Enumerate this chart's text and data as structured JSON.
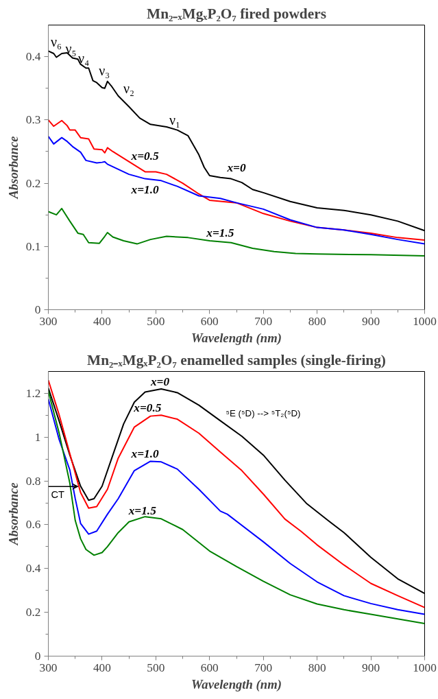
{
  "chart_data": [
    {
      "type": "line",
      "title": "Mn₂₋ₓMgₓP₂O₇ fired powders",
      "xlabel": "Wavelength (nm)",
      "ylabel": "Absorbance",
      "xlim": [
        300,
        1000
      ],
      "ylim": [
        0,
        0.45
      ],
      "xticks": [
        300,
        400,
        500,
        600,
        700,
        800,
        900,
        1000
      ],
      "yticks": [
        0,
        0.1,
        0.2,
        0.3,
        0.4
      ],
      "grid": false,
      "marker": "none",
      "line_style": "solid",
      "series": [
        {
          "name": "x=0",
          "color": "#000000",
          "x": [
            300,
            310,
            315,
            325,
            335,
            345,
            355,
            360,
            370,
            375,
            383,
            390,
            400,
            405,
            410,
            417,
            430,
            450,
            470,
            490,
            520,
            540,
            560,
            580,
            590,
            600,
            620,
            640,
            660,
            680,
            700,
            750,
            800,
            850,
            900,
            950,
            1000
          ],
          "values": [
            0.409,
            0.405,
            0.399,
            0.405,
            0.406,
            0.398,
            0.396,
            0.388,
            0.382,
            0.382,
            0.362,
            0.359,
            0.351,
            0.35,
            0.361,
            0.354,
            0.338,
            0.321,
            0.303,
            0.293,
            0.289,
            0.284,
            0.275,
            0.245,
            0.225,
            0.212,
            0.209,
            0.207,
            0.201,
            0.19,
            0.185,
            0.171,
            0.161,
            0.157,
            0.15,
            0.14,
            0.125
          ]
        },
        {
          "name": "x=0.5",
          "color": "#ff0000",
          "x": [
            300,
            310,
            325,
            335,
            340,
            350,
            360,
            375,
            385,
            400,
            405,
            410,
            420,
            450,
            480,
            500,
            520,
            550,
            580,
            600,
            650,
            700,
            750,
            800,
            850,
            900,
            950,
            1000
          ],
          "values": [
            0.3,
            0.29,
            0.299,
            0.291,
            0.284,
            0.284,
            0.272,
            0.27,
            0.254,
            0.253,
            0.248,
            0.256,
            0.25,
            0.234,
            0.218,
            0.218,
            0.214,
            0.2,
            0.183,
            0.173,
            0.169,
            0.152,
            0.14,
            0.13,
            0.126,
            0.121,
            0.114,
            0.11
          ]
        },
        {
          "name": "x=1.0",
          "color": "#0000ff",
          "x": [
            300,
            310,
            325,
            335,
            345,
            360,
            370,
            390,
            400,
            405,
            410,
            450,
            480,
            510,
            540,
            580,
            620,
            650,
            700,
            750,
            800,
            850,
            900,
            950,
            1000
          ],
          "values": [
            0.274,
            0.262,
            0.272,
            0.266,
            0.258,
            0.249,
            0.236,
            0.232,
            0.233,
            0.234,
            0.23,
            0.214,
            0.207,
            0.204,
            0.195,
            0.18,
            0.176,
            0.169,
            0.159,
            0.142,
            0.13,
            0.126,
            0.119,
            0.111,
            0.104
          ]
        },
        {
          "name": "x=1.5",
          "color": "#008000",
          "x": [
            300,
            315,
            325,
            340,
            355,
            365,
            375,
            395,
            405,
            410,
            420,
            440,
            465,
            490,
            520,
            560,
            600,
            640,
            680,
            720,
            760,
            800,
            900,
            1000
          ],
          "values": [
            0.155,
            0.15,
            0.16,
            0.14,
            0.121,
            0.119,
            0.106,
            0.105,
            0.116,
            0.122,
            0.115,
            0.109,
            0.104,
            0.111,
            0.116,
            0.114,
            0.109,
            0.106,
            0.097,
            0.092,
            0.089,
            0.088,
            0.087,
            0.085
          ]
        }
      ],
      "annotations": [
        "ν₆",
        "ν₅",
        "ν₄",
        "ν₃",
        "ν₂",
        "ν₁"
      ]
    },
    {
      "type": "line",
      "title": "Mn₂₋ₓMgₓP₂O₇ enamelled samples (single-firing)",
      "xlabel": "Wavelength (nm)",
      "ylabel": "Absorbance",
      "xlim": [
        300,
        1000
      ],
      "ylim": [
        0,
        1.3
      ],
      "xticks": [
        300,
        400,
        500,
        600,
        700,
        800,
        900,
        1000
      ],
      "yticks": [
        0,
        0.2,
        0.4,
        0.6,
        0.8,
        1,
        1.2
      ],
      "grid": false,
      "marker": "none",
      "line_style": "solid",
      "series": [
        {
          "name": "x=0",
          "color": "#000000",
          "x": [
            300,
            320,
            340,
            360,
            375,
            385,
            400,
            420,
            440,
            460,
            480,
            510,
            540,
            580,
            620,
            660,
            700,
            740,
            780,
            820,
            850,
            900,
            950,
            1000
          ],
          "values": [
            1.224,
            1.075,
            0.918,
            0.776,
            0.712,
            0.719,
            0.776,
            0.918,
            1.06,
            1.16,
            1.206,
            1.22,
            1.203,
            1.146,
            1.075,
            1.004,
            0.918,
            0.804,
            0.698,
            0.62,
            0.564,
            0.451,
            0.353,
            0.286
          ]
        },
        {
          "name": "x=0.5",
          "color": "#ff0000",
          "x": [
            300,
            320,
            340,
            360,
            375,
            390,
            410,
            430,
            460,
            490,
            510,
            540,
            580,
            620,
            660,
            700,
            740,
            770,
            800,
            850,
            900,
            950,
            1000
          ],
          "values": [
            1.26,
            1.103,
            0.925,
            0.747,
            0.676,
            0.683,
            0.762,
            0.904,
            1.046,
            1.096,
            1.1,
            1.082,
            1.018,
            0.932,
            0.847,
            0.74,
            0.626,
            0.57,
            0.508,
            0.416,
            0.332,
            0.276,
            0.222
          ]
        },
        {
          "name": "x=1.0",
          "color": "#0000ff",
          "x": [
            300,
            320,
            340,
            350,
            360,
            375,
            390,
            410,
            430,
            460,
            490,
            510,
            540,
            580,
            620,
            633,
            700,
            750,
            800,
            850,
            900,
            950,
            1000
          ],
          "values": [
            1.174,
            0.99,
            0.85,
            0.72,
            0.606,
            0.557,
            0.571,
            0.648,
            0.719,
            0.847,
            0.89,
            0.887,
            0.854,
            0.762,
            0.662,
            0.648,
            0.522,
            0.423,
            0.339,
            0.276,
            0.24,
            0.212,
            0.191
          ]
        },
        {
          "name": "x=1.5",
          "color": "#008000",
          "x": [
            300,
            320,
            340,
            350,
            360,
            370,
            385,
            400,
            410,
            430,
            450,
            480,
            510,
            550,
            600,
            650,
            700,
            750,
            800,
            850,
            900,
            950,
            1000
          ],
          "values": [
            1.21,
            1.02,
            0.79,
            0.62,
            0.536,
            0.487,
            0.461,
            0.473,
            0.5,
            0.564,
            0.613,
            0.637,
            0.627,
            0.578,
            0.48,
            0.409,
            0.342,
            0.28,
            0.238,
            0.212,
            0.191,
            0.17,
            0.149
          ]
        }
      ],
      "annotations": [
        "CT",
        "⁵E (⁵D) --> ⁵T₂(⁵D)"
      ]
    }
  ]
}
